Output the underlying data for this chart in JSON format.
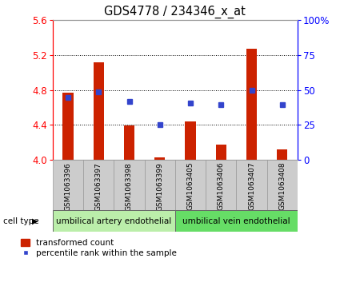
{
  "title": "GDS4778 / 234346_x_at",
  "samples": [
    "GSM1063396",
    "GSM1063397",
    "GSM1063398",
    "GSM1063399",
    "GSM1063405",
    "GSM1063406",
    "GSM1063407",
    "GSM1063408"
  ],
  "red_values": [
    4.77,
    5.12,
    4.39,
    4.02,
    4.44,
    4.17,
    5.27,
    4.12
  ],
  "blue_values": [
    4.71,
    4.78,
    4.67,
    4.4,
    4.65,
    4.63,
    4.8,
    4.63
  ],
  "red_base": 4.0,
  "ylim_left": [
    4.0,
    5.6
  ],
  "ylim_right": [
    0,
    100
  ],
  "yticks_left": [
    4.0,
    4.4,
    4.8,
    5.2,
    5.6
  ],
  "yticks_right": [
    0,
    25,
    50,
    75,
    100
  ],
  "ytick_labels_right": [
    "0",
    "25",
    "50",
    "75",
    "100%"
  ],
  "grid_values": [
    4.4,
    4.8,
    5.2
  ],
  "bar_color": "#cc2200",
  "dot_color": "#3344cc",
  "bar_width": 0.35,
  "group1_label": "umbilical artery endothelial",
  "group2_label": "umbilical vein endothelial",
  "group1_color": "#bbeeaa",
  "group2_color": "#66dd66",
  "legend_red": "transformed count",
  "legend_blue": "percentile rank within the sample",
  "cell_type_label": "cell type",
  "sample_box_color": "#cccccc",
  "sample_box_edge": "#999999"
}
